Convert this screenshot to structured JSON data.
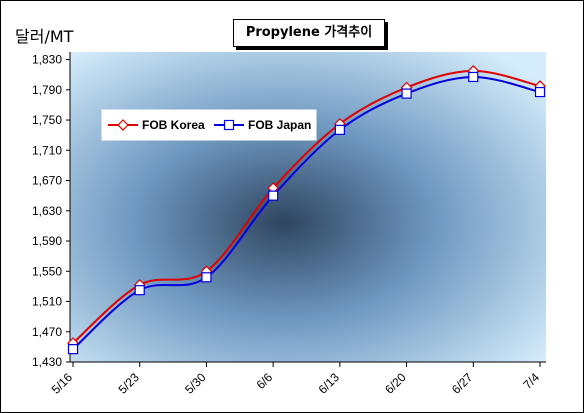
{
  "chart_data": {
    "type": "line",
    "title": "Propylene 가격추이",
    "ylabel": "달러/MT",
    "xlabel": "",
    "categories": [
      "5/16",
      "5/23",
      "5/30",
      "6/6",
      "6/13",
      "6/20",
      "6/27",
      "7/4"
    ],
    "yticks": [
      "1,430",
      "1,470",
      "1,510",
      "1,550",
      "1,590",
      "1,630",
      "1,670",
      "1,710",
      "1,750",
      "1,790",
      "1,830"
    ],
    "ylim": [
      1430,
      1840
    ],
    "series": [
      {
        "name": "FOB Korea",
        "color": "#e00000",
        "marker": "diamond",
        "values": [
          1455,
          1532,
          1550,
          1660,
          1745,
          1793,
          1815,
          1795
        ]
      },
      {
        "name": "FOB Japan",
        "color": "#0000e0",
        "marker": "square",
        "values": [
          1447,
          1525,
          1542,
          1650,
          1737,
          1785,
          1807,
          1787
        ]
      }
    ],
    "legend": "upper-left inside plot",
    "grid": false
  }
}
